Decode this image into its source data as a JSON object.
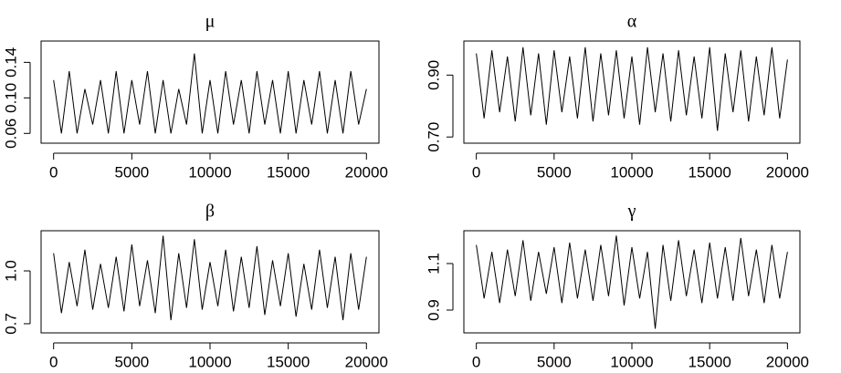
{
  "chart_data": [
    {
      "type": "line",
      "title": "μ",
      "color": "#000000",
      "x": [
        0,
        500,
        1000,
        1500,
        2000,
        2500,
        3000,
        3500,
        4000,
        4500,
        5000,
        5500,
        6000,
        6500,
        7000,
        7500,
        8000,
        8500,
        9000,
        9500,
        10000,
        10500,
        11000,
        11500,
        12000,
        12500,
        13000,
        13500,
        14000,
        14500,
        15000,
        15500,
        16000,
        16500,
        17000,
        17500,
        18000,
        18500,
        19000,
        19500,
        20000
      ],
      "values": [
        0.12,
        0.06,
        0.13,
        0.06,
        0.11,
        0.07,
        0.12,
        0.06,
        0.13,
        0.06,
        0.12,
        0.07,
        0.13,
        0.06,
        0.12,
        0.06,
        0.11,
        0.07,
        0.15,
        0.06,
        0.12,
        0.06,
        0.13,
        0.07,
        0.12,
        0.06,
        0.13,
        0.07,
        0.12,
        0.06,
        0.13,
        0.06,
        0.12,
        0.07,
        0.13,
        0.06,
        0.12,
        0.06,
        0.13,
        0.07,
        0.11
      ],
      "xlim": [
        -800,
        20800
      ],
      "xticks": [
        0,
        5000,
        10000,
        15000,
        20000
      ],
      "ylim": [
        0.049,
        0.164
      ],
      "yticks": [
        0.06,
        {
          "value": 0.1,
          "label": "0.10"
        },
        0.14
      ]
    },
    {
      "type": "line",
      "title": "α",
      "color": "#000000",
      "x": [
        0,
        500,
        1000,
        1500,
        2000,
        2500,
        3000,
        3500,
        4000,
        4500,
        5000,
        5500,
        6000,
        6500,
        7000,
        7500,
        8000,
        8500,
        9000,
        9500,
        10000,
        10500,
        11000,
        11500,
        12000,
        12500,
        13000,
        13500,
        14000,
        14500,
        15000,
        15500,
        16000,
        16500,
        17000,
        17500,
        18000,
        18500,
        19000,
        19500,
        20000
      ],
      "values": [
        0.97,
        0.76,
        0.98,
        0.78,
        0.96,
        0.75,
        0.99,
        0.77,
        0.97,
        0.74,
        0.98,
        0.78,
        0.96,
        0.76,
        0.99,
        0.75,
        0.97,
        0.77,
        0.98,
        0.76,
        0.96,
        0.74,
        0.99,
        0.78,
        0.97,
        0.75,
        0.98,
        0.77,
        0.96,
        0.76,
        0.99,
        0.72,
        0.97,
        0.78,
        0.98,
        0.75,
        0.96,
        0.77,
        0.99,
        0.76,
        0.95
      ],
      "xlim": [
        -800,
        20800
      ],
      "xticks": [
        0,
        5000,
        10000,
        15000,
        20000
      ],
      "ylim": [
        0.68,
        1.01
      ],
      "yticks": [
        {
          "value": 0.7,
          "label": "0.70"
        },
        {
          "value": 0.9,
          "label": "0.90"
        }
      ]
    },
    {
      "type": "line",
      "title": "β",
      "color": "#000000",
      "x": [
        0,
        500,
        1000,
        1500,
        2000,
        2500,
        3000,
        3500,
        4000,
        4500,
        5000,
        5500,
        6000,
        6500,
        7000,
        7500,
        8000,
        8500,
        9000,
        9500,
        10000,
        10500,
        11000,
        11500,
        12000,
        12500,
        13000,
        13500,
        14000,
        14500,
        15000,
        15500,
        16000,
        16500,
        17000,
        17500,
        18000,
        18500,
        19000,
        19500,
        20000
      ],
      "values": [
        1.1,
        0.76,
        1.05,
        0.8,
        1.12,
        0.78,
        1.04,
        0.79,
        1.08,
        0.77,
        1.15,
        0.8,
        1.06,
        0.76,
        1.2,
        0.72,
        1.1,
        0.79,
        1.18,
        0.78,
        1.05,
        0.8,
        1.12,
        0.77,
        1.08,
        0.79,
        1.14,
        0.75,
        1.06,
        0.8,
        1.1,
        0.74,
        1.04,
        0.78,
        1.12,
        0.79,
        1.08,
        0.72,
        1.1,
        0.78,
        1.08
      ],
      "xlim": [
        -800,
        20800
      ],
      "xticks": [
        0,
        5000,
        10000,
        15000,
        20000
      ],
      "ylim": [
        0.648,
        1.228
      ],
      "yticks": [
        0.7,
        {
          "value": 1,
          "label": "1.0"
        }
      ]
    },
    {
      "type": "line",
      "title": "γ",
      "color": "#000000",
      "x": [
        0,
        500,
        1000,
        1500,
        2000,
        2500,
        3000,
        3500,
        4000,
        4500,
        5000,
        5500,
        6000,
        6500,
        7000,
        7500,
        8000,
        8500,
        9000,
        9500,
        10000,
        10500,
        11000,
        11500,
        12000,
        12500,
        13000,
        13500,
        14000,
        14500,
        15000,
        15500,
        16000,
        16500,
        17000,
        17500,
        18000,
        18500,
        19000,
        19500,
        20000
      ],
      "values": [
        1.18,
        0.95,
        1.15,
        0.93,
        1.16,
        0.96,
        1.2,
        0.94,
        1.15,
        0.97,
        1.17,
        0.93,
        1.19,
        0.95,
        1.16,
        0.94,
        1.18,
        0.96,
        1.22,
        0.92,
        1.17,
        0.95,
        1.15,
        0.82,
        1.18,
        0.94,
        1.2,
        0.96,
        1.16,
        0.93,
        1.19,
        0.95,
        1.17,
        0.94,
        1.21,
        0.96,
        1.16,
        0.93,
        1.18,
        0.95,
        1.15
      ],
      "xlim": [
        -800,
        20800
      ],
      "xticks": [
        0,
        5000,
        10000,
        15000,
        20000
      ],
      "ylim": [
        0.802,
        1.241
      ],
      "yticks": [
        0.9,
        1.1
      ]
    }
  ]
}
